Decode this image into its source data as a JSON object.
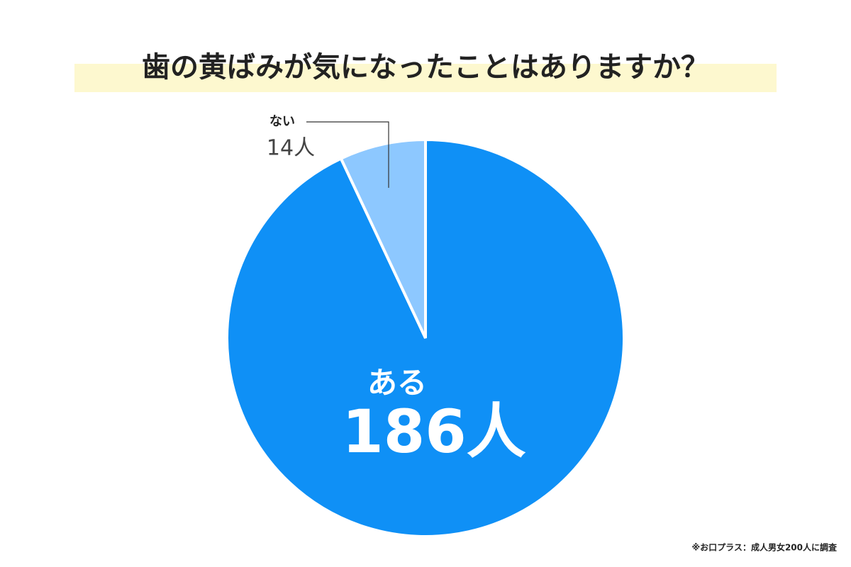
{
  "chart_data": {
    "type": "pie",
    "title": "歯の黄ばみが気になったことはありますか？",
    "categories": [
      "ある",
      "ない"
    ],
    "values": [
      186,
      14
    ],
    "value_labels": [
      "186人",
      "14人"
    ],
    "colors": [
      "#0f90f6",
      "#8dc8ff"
    ],
    "note": "※お口プラス：成人男女200人に調査"
  }
}
